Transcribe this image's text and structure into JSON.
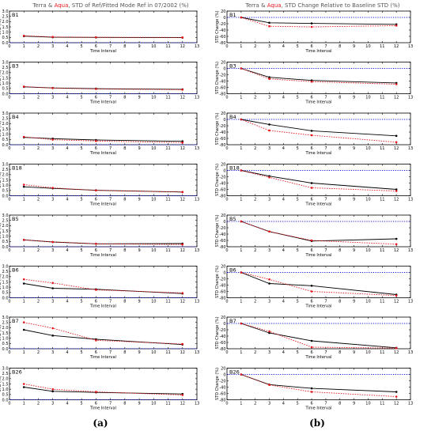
{
  "titles": [
    {
      "sat1": "Terra",
      "amp": " & ",
      "sat2": "Aqua",
      "rest": ", STD of Ref/Fitted Mode Ref in 07/2002 (%)"
    },
    {
      "sat1": "Terra",
      "amp": " & ",
      "sat2": "Aqua",
      "rest": ", STD Change Relative to Baseline STD (%)"
    }
  ],
  "panel_labels": [
    "(a)",
    "(b)"
  ],
  "colors": {
    "terra": "#000000",
    "aqua": "#e8141c",
    "baseline": "#1a1ad6",
    "title_text": "#555555"
  },
  "chart_data": [
    {
      "type": "line",
      "panel": "(a)",
      "xlabel": "Time Interval",
      "ylabel": "STD (%)",
      "xlim": [
        0,
        13
      ],
      "ylim": [
        0,
        3.0
      ],
      "xticks": [
        0,
        1,
        2,
        3,
        4,
        5,
        6,
        7,
        8,
        9,
        10,
        11,
        12,
        13
      ],
      "yticks": [
        "0.0",
        "0.5",
        "1.0",
        "1.5",
        "2.0",
        "2.5",
        "3.0"
      ],
      "x": [
        1,
        3,
        6,
        12
      ],
      "baseline_y": 0,
      "bands": [
        {
          "label": "B1",
          "series": [
            {
              "values": [
                0.62,
                0.52,
                0.5,
                0.48
              ]
            },
            {
              "values": [
                0.66,
                0.55,
                0.52,
                0.5
              ]
            }
          ]
        },
        {
          "label": "B3",
          "series": [
            {
              "values": [
                0.65,
                0.55,
                0.48,
                0.42
              ]
            },
            {
              "values": [
                0.68,
                0.53,
                0.45,
                0.38
              ]
            }
          ]
        },
        {
          "label": "B4",
          "series": [
            {
              "values": [
                0.7,
                0.58,
                0.45,
                0.32
              ]
            },
            {
              "values": [
                0.75,
                0.48,
                0.35,
                0.2
              ]
            }
          ]
        },
        {
          "label": "B18",
          "series": [
            {
              "values": [
                0.85,
                0.7,
                0.52,
                0.35
              ]
            },
            {
              "values": [
                1.05,
                0.75,
                0.5,
                0.35
              ]
            }
          ]
        },
        {
          "label": "B5",
          "series": [
            {
              "values": [
                0.65,
                0.45,
                0.28,
                0.3
              ]
            },
            {
              "values": [
                0.65,
                0.45,
                0.28,
                0.22
              ]
            }
          ]
        },
        {
          "label": "B6",
          "series": [
            {
              "values": [
                1.35,
                0.9,
                0.8,
                0.4
              ]
            },
            {
              "values": [
                1.75,
                1.4,
                0.75,
                0.45
              ]
            }
          ]
        },
        {
          "label": "B7",
          "series": [
            {
              "values": [
                1.8,
                1.25,
                0.9,
                0.4
              ]
            },
            {
              "values": [
                2.5,
                1.95,
                0.8,
                0.45
              ]
            }
          ]
        },
        {
          "label": "B26",
          "series": [
            {
              "values": [
                1.2,
                0.8,
                0.7,
                0.55
              ]
            },
            {
              "values": [
                1.5,
                1.0,
                0.75,
                0.45
              ]
            }
          ]
        }
      ]
    },
    {
      "type": "line",
      "panel": "(b)",
      "xlabel": "Time Interval",
      "ylabel": "STD Change (%)",
      "xlim": [
        0,
        13
      ],
      "ylim": [
        -80,
        20
      ],
      "xticks": [
        0,
        1,
        2,
        3,
        4,
        5,
        6,
        7,
        8,
        9,
        10,
        11,
        12,
        13
      ],
      "yticks": [
        "-80",
        "-60",
        "-40",
        "-20",
        "0",
        "20"
      ],
      "x": [
        1,
        3,
        6,
        12
      ],
      "baseline_y": 0,
      "bands": [
        {
          "label": "B1",
          "series": [
            {
              "values": [
                0,
                -17,
                -19,
                -22
              ]
            },
            {
              "values": [
                0,
                -28,
                -30,
                -26
              ]
            }
          ]
        },
        {
          "label": "B3",
          "series": [
            {
              "values": [
                0,
                -28,
                -38,
                -46
              ]
            },
            {
              "values": [
                0,
                -33,
                -42,
                -50
              ]
            }
          ]
        },
        {
          "label": "B4",
          "series": [
            {
              "values": [
                0,
                -16,
                -36,
                -52
              ]
            },
            {
              "values": [
                0,
                -35,
                -50,
                -72
              ]
            }
          ]
        },
        {
          "label": "B18",
          "series": [
            {
              "values": [
                0,
                -18,
                -40,
                -60
              ]
            },
            {
              "values": [
                0,
                -22,
                -55,
                -65
              ]
            }
          ]
        },
        {
          "label": "B5",
          "series": [
            {
              "values": [
                0,
                -32,
                -62,
                -55
              ]
            },
            {
              "values": [
                0,
                -32,
                -60,
                -72
              ]
            }
          ]
        },
        {
          "label": "B6",
          "series": [
            {
              "values": [
                0,
                -35,
                -42,
                -70
              ]
            },
            {
              "values": [
                0,
                -22,
                -60,
                -73
              ]
            }
          ]
        },
        {
          "label": "B7",
          "series": [
            {
              "values": [
                0,
                -30,
                -55,
                -77
              ]
            },
            {
              "values": [
                0,
                -25,
                -75,
                -78
              ]
            }
          ]
        },
        {
          "label": "B26",
          "series": [
            {
              "values": [
                0,
                -32,
                -44,
                -55
              ]
            },
            {
              "values": [
                0,
                -33,
                -55,
                -70
              ]
            }
          ]
        }
      ]
    }
  ]
}
